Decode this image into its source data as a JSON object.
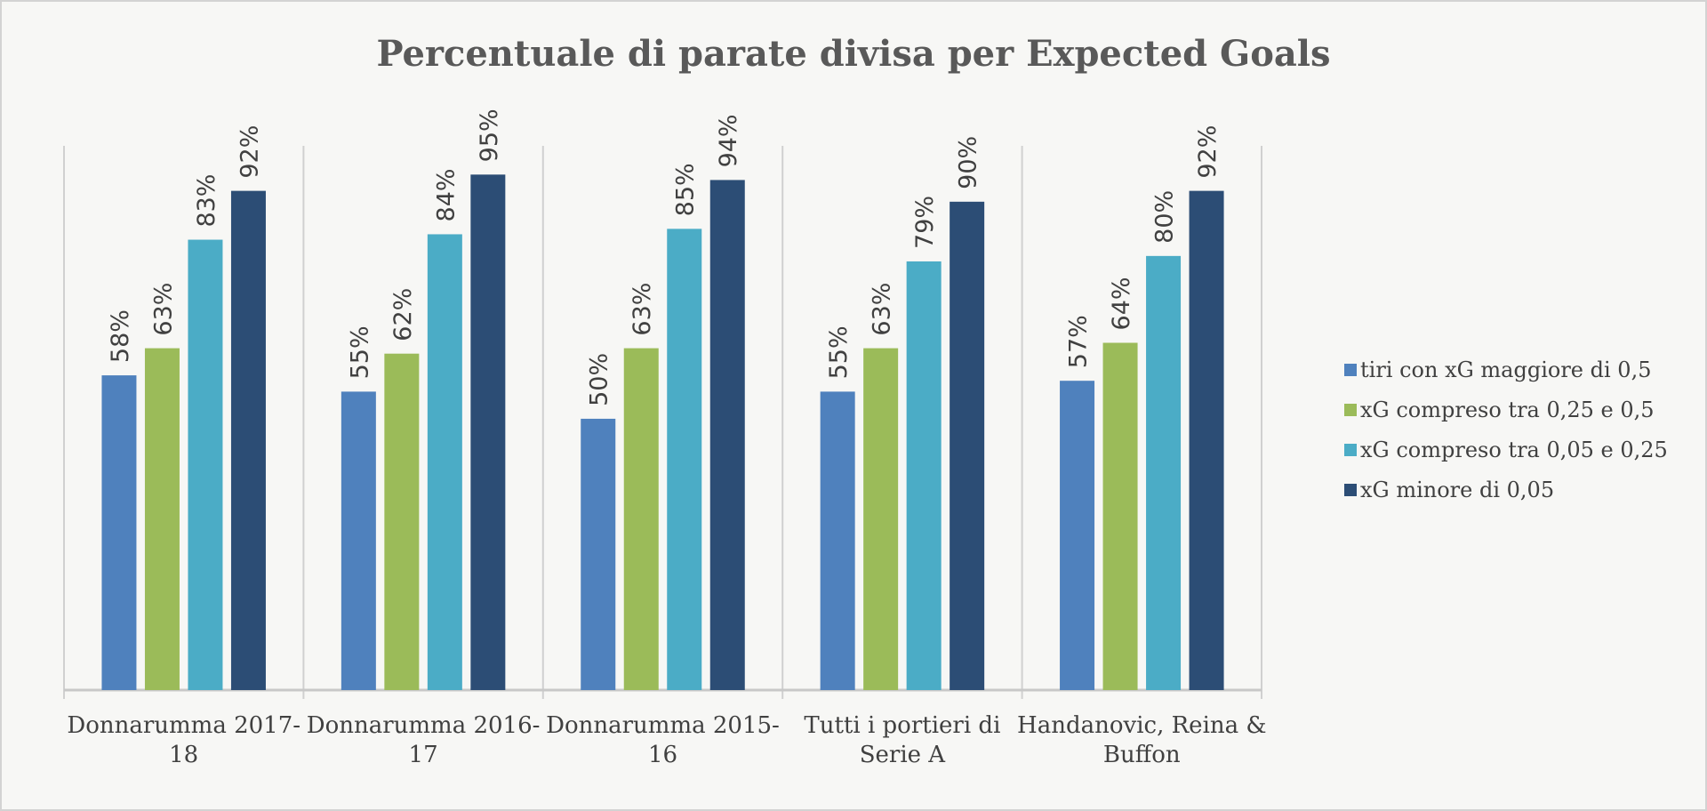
{
  "chart_data": {
    "type": "bar",
    "title": "Percentuale di parate divisa per Expected Goals",
    "xlabel": "",
    "ylabel": "",
    "ylim": [
      0,
      100
    ],
    "grid": false,
    "legend_position": "right",
    "categories": [
      [
        "Donnarumma 2017-",
        "18"
      ],
      [
        "Donnarumma 2016-",
        "17"
      ],
      [
        "Donnarumma 2015-",
        "16"
      ],
      [
        "Tutti i portieri di",
        "Serie A"
      ],
      [
        "Handanovic, Reina &",
        "Buffon"
      ]
    ],
    "series": [
      {
        "name": "tiri con xG maggiore di 0,5",
        "color": "#4F81BD",
        "values": [
          58,
          55,
          50,
          55,
          57
        ],
        "labels": [
          "58%",
          "55%",
          "50%",
          "55%",
          "57%"
        ]
      },
      {
        "name": "xG compreso tra 0,25 e 0,5",
        "color": "#9BBB59",
        "values": [
          63,
          62,
          63,
          63,
          64
        ],
        "labels": [
          "63%",
          "62%",
          "63%",
          "63%",
          "64%"
        ]
      },
      {
        "name": "xG compreso tra 0,05 e 0,25",
        "color": "#4BACC6",
        "values": [
          83,
          84,
          85,
          79,
          80
        ],
        "labels": [
          "83%",
          "84%",
          "85%",
          "79%",
          "80%"
        ]
      },
      {
        "name": "xG minore di 0,05",
        "color": "#2C4D75",
        "values": [
          92,
          95,
          94,
          90,
          92
        ],
        "labels": [
          "92%",
          "95%",
          "94%",
          "90%",
          "92%"
        ]
      }
    ]
  }
}
